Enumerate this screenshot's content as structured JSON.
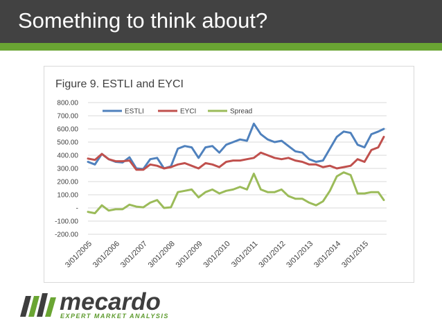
{
  "slide": {
    "title": "Something to think about?"
  },
  "brand": {
    "name": "mecardo",
    "tagline": "EXPERT MARKET ANALYSIS",
    "accent_color": "#6aa533",
    "header_color": "#424242"
  },
  "chart_data": {
    "type": "line",
    "title": "Figure 9.  ESTLI and EYCI",
    "xlabel": "",
    "ylabel": "",
    "ylim": [
      -200,
      800
    ],
    "y_ticks": [
      "800.00",
      "700.00",
      "600.00",
      "500.00",
      "400.00",
      "300.00",
      "200.00",
      "100.00",
      "-",
      "-100.00",
      "-200.00"
    ],
    "y_tick_values": [
      800,
      700,
      600,
      500,
      400,
      300,
      200,
      100,
      0,
      -100,
      -200
    ],
    "x_ticks": [
      "3/01/2005",
      "3/01/2006",
      "3/01/2007",
      "3/01/2008",
      "3/01/2009",
      "3/01/2010",
      "3/01/2011",
      "3/01/2012",
      "3/01/2013",
      "3/01/2014",
      "3/01/2015"
    ],
    "x": [
      2005.0,
      2005.25,
      2005.5,
      2005.75,
      2006.0,
      2006.25,
      2006.5,
      2006.75,
      2007.0,
      2007.25,
      2007.5,
      2007.75,
      2008.0,
      2008.25,
      2008.5,
      2008.75,
      2009.0,
      2009.25,
      2009.5,
      2009.75,
      2010.0,
      2010.25,
      2010.5,
      2010.75,
      2011.0,
      2011.25,
      2011.5,
      2011.75,
      2012.0,
      2012.25,
      2012.5,
      2012.75,
      2013.0,
      2013.25,
      2013.5,
      2013.75,
      2014.0,
      2014.25,
      2014.5,
      2014.75,
      2015.0,
      2015.25,
      2015.5,
      2015.7
    ],
    "grid": true,
    "legend_position": "top-left",
    "series": [
      {
        "name": "ESTLI",
        "color": "#4f81bd",
        "values": [
          350,
          330,
          410,
          370,
          350,
          345,
          385,
          300,
          295,
          370,
          380,
          300,
          315,
          450,
          470,
          460,
          380,
          460,
          470,
          420,
          480,
          500,
          520,
          510,
          640,
          560,
          520,
          500,
          510,
          470,
          430,
          420,
          370,
          350,
          360,
          450,
          540,
          580,
          570,
          480,
          460,
          560,
          580,
          600
        ]
      },
      {
        "name": "EYCI",
        "color": "#c0504d",
        "values": [
          375,
          365,
          410,
          370,
          355,
          355,
          360,
          290,
          290,
          330,
          320,
          300,
          310,
          330,
          340,
          320,
          300,
          340,
          330,
          310,
          350,
          360,
          360,
          370,
          380,
          420,
          400,
          380,
          370,
          380,
          360,
          350,
          330,
          330,
          310,
          320,
          300,
          310,
          320,
          370,
          350,
          440,
          460,
          540
        ]
      },
      {
        "name": "Spread",
        "color": "#9bbb59",
        "values": [
          -30,
          -40,
          20,
          -20,
          -10,
          -10,
          25,
          10,
          5,
          40,
          60,
          0,
          5,
          120,
          130,
          140,
          80,
          120,
          140,
          110,
          130,
          140,
          160,
          140,
          260,
          140,
          120,
          120,
          140,
          90,
          70,
          70,
          40,
          20,
          50,
          130,
          240,
          270,
          250,
          110,
          110,
          120,
          120,
          60
        ]
      }
    ]
  }
}
